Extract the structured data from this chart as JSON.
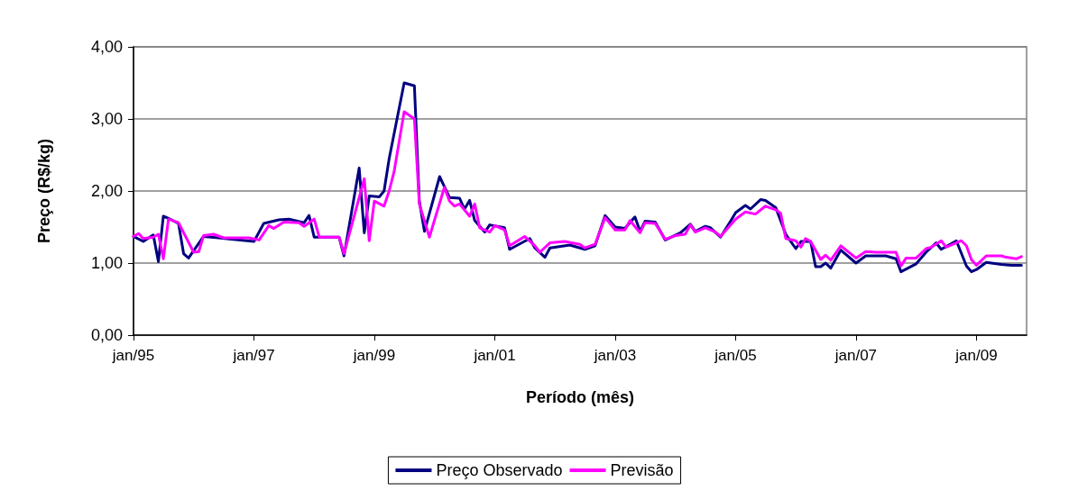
{
  "chart_data": {
    "type": "line",
    "xlabel": "Período (mês)",
    "ylabel": "Preço (R$/kg)",
    "xlim": [
      "1995-01",
      "2009-11"
    ],
    "xticks": [
      {
        "value": "1995-01",
        "label": "jan/95"
      },
      {
        "value": "1997-01",
        "label": "jan/97"
      },
      {
        "value": "1999-01",
        "label": "jan/99"
      },
      {
        "value": "2001-01",
        "label": "jan/01"
      },
      {
        "value": "2003-01",
        "label": "jan/03"
      },
      {
        "value": "2005-01",
        "label": "jan/05"
      },
      {
        "value": "2007-01",
        "label": "jan/07"
      },
      {
        "value": "2009-01",
        "label": "jan/09"
      }
    ],
    "ylim": [
      0,
      4
    ],
    "yticks": [
      {
        "value": 0,
        "label": "0,00"
      },
      {
        "value": 1,
        "label": "1,00"
      },
      {
        "value": 2,
        "label": "2,00"
      },
      {
        "value": 3,
        "label": "3,00"
      },
      {
        "value": 4,
        "label": "4,00"
      }
    ],
    "grid": "y",
    "legend": "bottom",
    "marker": "none",
    "line_style": "solid",
    "series": [
      {
        "name": "Preço Observado",
        "color": "#000080",
        "x": [
          "1995-01",
          "1995-03",
          "1995-05",
          "1995-06",
          "1995-07",
          "1995-08",
          "1995-10",
          "1995-11",
          "1995-12",
          "1996-03",
          "1996-06",
          "1997-01",
          "1997-03",
          "1997-06",
          "1997-08",
          "1997-11",
          "1997-12",
          "1998-01",
          "1998-06",
          "1998-07",
          "1998-10",
          "1998-11",
          "1998-12",
          "1999-02",
          "1999-03",
          "1999-04",
          "1999-07",
          "1999-09",
          "1999-10",
          "1999-11",
          "2000-02",
          "2000-04",
          "2000-06",
          "2000-07",
          "2000-08",
          "2000-09",
          "2000-11",
          "2000-12",
          "2001-03",
          "2001-04",
          "2001-08",
          "2001-09",
          "2001-11",
          "2001-12",
          "2002-04",
          "2002-07",
          "2002-09",
          "2002-11",
          "2003-01",
          "2003-03",
          "2003-05",
          "2003-06",
          "2003-07",
          "2003-09",
          "2003-11",
          "2004-02",
          "2004-04",
          "2004-05",
          "2004-07",
          "2004-08",
          "2004-10",
          "2004-12",
          "2005-01",
          "2005-03",
          "2005-04",
          "2005-06",
          "2005-07",
          "2005-09",
          "2005-11",
          "2005-12",
          "2006-01",
          "2006-02",
          "2006-04",
          "2006-05",
          "2006-06",
          "2006-07",
          "2006-08",
          "2006-10",
          "2007-01",
          "2007-03",
          "2007-07",
          "2007-09",
          "2007-10",
          "2008-01",
          "2008-03",
          "2008-05",
          "2008-06",
          "2008-09",
          "2008-11",
          "2008-12",
          "2009-01",
          "2009-03",
          "2009-06",
          "2009-08",
          "2009-10"
        ],
        "values": [
          1.37,
          1.3,
          1.39,
          1.02,
          1.65,
          1.62,
          1.55,
          1.13,
          1.07,
          1.37,
          1.35,
          1.3,
          1.55,
          1.6,
          1.61,
          1.56,
          1.66,
          1.36,
          1.36,
          1.1,
          2.32,
          1.42,
          1.93,
          1.92,
          2.0,
          2.45,
          3.5,
          3.46,
          1.86,
          1.44,
          2.2,
          1.91,
          1.9,
          1.75,
          1.87,
          1.59,
          1.43,
          1.53,
          1.49,
          1.19,
          1.34,
          1.21,
          1.08,
          1.21,
          1.25,
          1.19,
          1.24,
          1.66,
          1.5,
          1.48,
          1.64,
          1.44,
          1.58,
          1.57,
          1.32,
          1.42,
          1.54,
          1.44,
          1.51,
          1.49,
          1.36,
          1.58,
          1.7,
          1.8,
          1.75,
          1.88,
          1.87,
          1.77,
          1.4,
          1.3,
          1.2,
          1.3,
          1.3,
          0.95,
          0.95,
          1.0,
          0.93,
          1.18,
          1.0,
          1.1,
          1.1,
          1.06,
          0.88,
          0.99,
          1.15,
          1.28,
          1.19,
          1.31,
          0.96,
          0.88,
          0.91,
          1.01,
          0.98,
          0.97,
          0.97
        ]
      },
      {
        "name": "Previsão",
        "color": "#ff00ff",
        "x": [
          "1995-01",
          "1995-02",
          "1995-03",
          "1995-05",
          "1995-06",
          "1995-07",
          "1995-08",
          "1995-10",
          "1996-01",
          "1996-02",
          "1996-03",
          "1996-05",
          "1996-07",
          "1996-12",
          "1997-02",
          "1997-04",
          "1997-05",
          "1997-07",
          "1997-10",
          "1997-11",
          "1998-01",
          "1998-02",
          "1998-06",
          "1998-07",
          "1998-11",
          "1998-12",
          "1999-01",
          "1999-03",
          "1999-04",
          "1999-05",
          "1999-07",
          "1999-09",
          "1999-10",
          "1999-12",
          "2000-03",
          "2000-04",
          "2000-05",
          "2000-06",
          "2000-08",
          "2000-09",
          "2000-10",
          "2000-12",
          "2001-01",
          "2001-03",
          "2001-04",
          "2001-07",
          "2001-09",
          "2001-10",
          "2001-12",
          "2002-03",
          "2002-06",
          "2002-07",
          "2002-09",
          "2002-11",
          "2003-01",
          "2003-03",
          "2003-04",
          "2003-06",
          "2003-07",
          "2003-09",
          "2003-11",
          "2004-01",
          "2004-03",
          "2004-04",
          "2004-05",
          "2004-07",
          "2004-09",
          "2004-10",
          "2005-01",
          "2005-03",
          "2005-05",
          "2005-07",
          "2005-09",
          "2005-10",
          "2005-11",
          "2006-01",
          "2006-02",
          "2006-03",
          "2006-04",
          "2006-06",
          "2006-07",
          "2006-08",
          "2006-10",
          "2007-01",
          "2007-03",
          "2007-05",
          "2007-09",
          "2007-10",
          "2007-11",
          "2008-01",
          "2008-03",
          "2008-04",
          "2008-06",
          "2008-07",
          "2008-10",
          "2008-11",
          "2008-12",
          "2009-01",
          "2009-03",
          "2009-06",
          "2009-07",
          "2009-09",
          "2009-10"
        ],
        "values": [
          1.37,
          1.41,
          1.34,
          1.36,
          1.4,
          1.06,
          1.61,
          1.56,
          1.15,
          1.16,
          1.38,
          1.4,
          1.35,
          1.35,
          1.32,
          1.52,
          1.48,
          1.57,
          1.56,
          1.51,
          1.61,
          1.36,
          1.36,
          1.13,
          2.17,
          1.31,
          1.86,
          1.79,
          2.0,
          2.27,
          3.1,
          3.0,
          1.82,
          1.36,
          2.05,
          1.86,
          1.79,
          1.82,
          1.65,
          1.82,
          1.49,
          1.43,
          1.52,
          1.46,
          1.24,
          1.37,
          1.24,
          1.15,
          1.28,
          1.3,
          1.26,
          1.21,
          1.26,
          1.63,
          1.46,
          1.46,
          1.59,
          1.42,
          1.56,
          1.55,
          1.33,
          1.38,
          1.4,
          1.53,
          1.43,
          1.49,
          1.43,
          1.37,
          1.61,
          1.71,
          1.68,
          1.79,
          1.74,
          1.69,
          1.34,
          1.31,
          1.22,
          1.34,
          1.3,
          1.05,
          1.11,
          1.04,
          1.24,
          1.07,
          1.16,
          1.15,
          1.15,
          0.96,
          1.07,
          1.07,
          1.2,
          1.22,
          1.31,
          1.22,
          1.31,
          1.24,
          1.05,
          0.97,
          1.1,
          1.1,
          1.08,
          1.06,
          1.09
        ]
      }
    ]
  }
}
